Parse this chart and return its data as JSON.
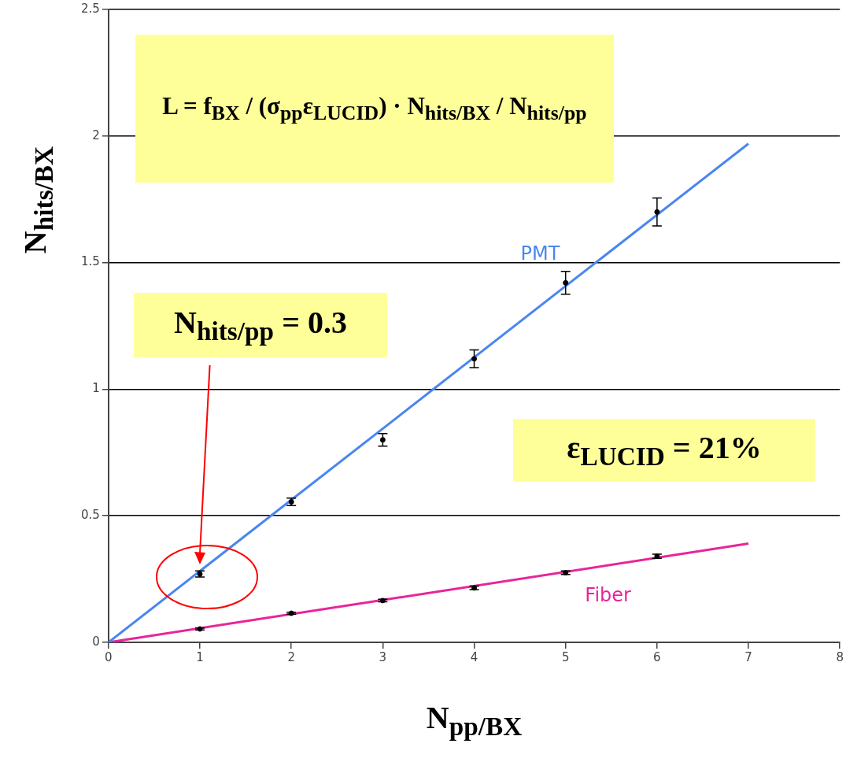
{
  "chart_data": {
    "type": "scatter",
    "xlabel": "N$_{pp/BX}$",
    "ylabel": "N$_{hits/BX}$",
    "xlim": [
      0,
      8
    ],
    "xticks": [
      0,
      1,
      2,
      3,
      4,
      5,
      6,
      7,
      8
    ],
    "ylim": [
      0,
      2.5
    ],
    "yticks": [
      0,
      0.5,
      1,
      1.5,
      2,
      2.5
    ],
    "grid": "y",
    "legend": false,
    "marker": "circle",
    "series": [
      {
        "type": "line",
        "name": "PMT",
        "color": "#4a86f0",
        "marker": "none",
        "x": [
          0,
          7
        ],
        "values": [
          0,
          1.97
        ]
      },
      {
        "type": "line",
        "name": "Fiber",
        "color": "#e8259a",
        "marker": "none",
        "x": [
          0,
          7
        ],
        "values": [
          0,
          0.39
        ]
      },
      {
        "color": "#000000",
        "x": [
          1,
          2,
          3,
          4,
          5,
          6
        ],
        "values": [
          0.27,
          0.555,
          0.8,
          1.12,
          1.42,
          1.7
        ],
        "errors": [
          0.012,
          0.015,
          0.025,
          0.035,
          0.045,
          0.055
        ]
      },
      {
        "color": "#000000",
        "x": [
          1,
          2,
          3,
          4,
          5,
          6
        ],
        "values": [
          0.053,
          0.115,
          0.165,
          0.215,
          0.275,
          0.34
        ],
        "errors": [
          0.004,
          0.004,
          0.005,
          0.007,
          0.007,
          0.008
        ]
      }
    ],
    "annotations": [
      "L = f$_{BX}$ / (σ$_{pp}$ε$_{LUCID}$) · N$_{hits/BX}$ / N$_{hits/pp}$",
      "N$_{hits/pp}$ = 0.3",
      "ε$_{LUCID}$ = 21%"
    ]
  }
}
